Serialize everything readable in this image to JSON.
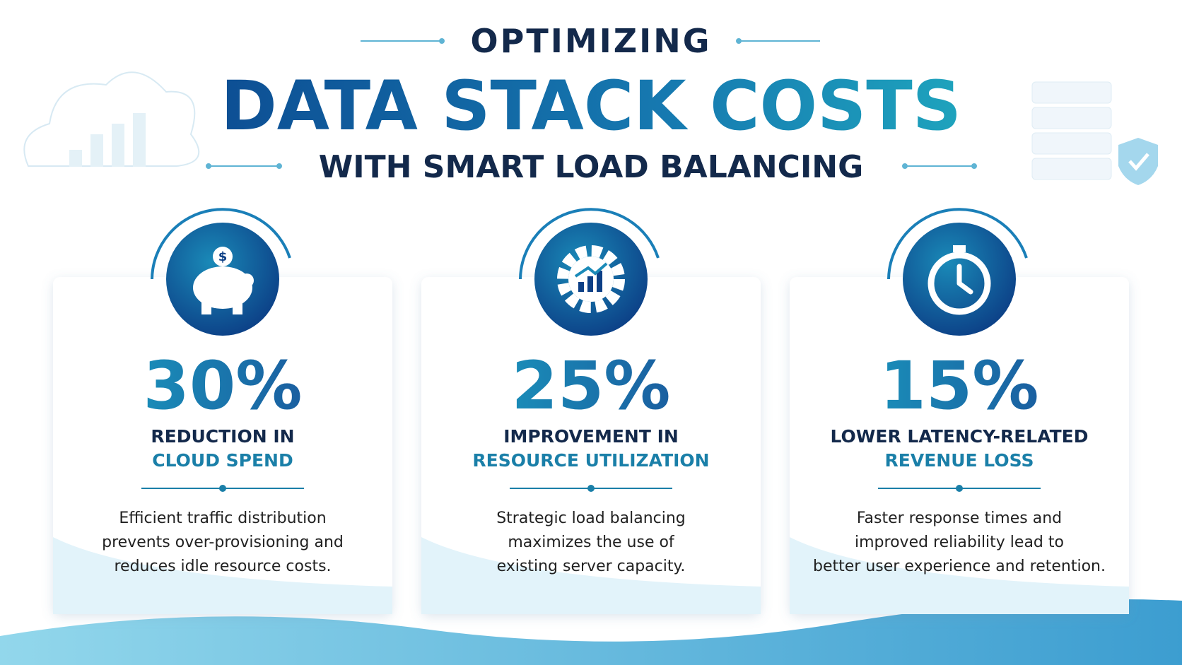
{
  "header": {
    "kicker": "OPTIMIZING",
    "title": "DATA STACK COSTS",
    "subtitle": "WITH SMART LOAD BALANCING"
  },
  "cards": [
    {
      "stat": "30%",
      "label_line1": "REDUCTION IN",
      "label_line2": "CLOUD SPEND",
      "description": [
        "Efficient traffic distribution",
        "prevents over-provisioning and",
        "reduces idle resource costs."
      ]
    },
    {
      "stat": "25%",
      "label_line1": "IMPROVEMENT IN",
      "label_line2": "RESOURCE UTILIZATION",
      "description": [
        "Strategic load balancing",
        "maximizes the use of",
        "existing server capacity."
      ]
    },
    {
      "stat": "15%",
      "label_line1": "LOWER LATENCY-RELATED",
      "label_line2": "REVENUE LOSS",
      "description": [
        "Faster response times and",
        "improved reliability lead to",
        "better user experience and retention."
      ]
    }
  ]
}
